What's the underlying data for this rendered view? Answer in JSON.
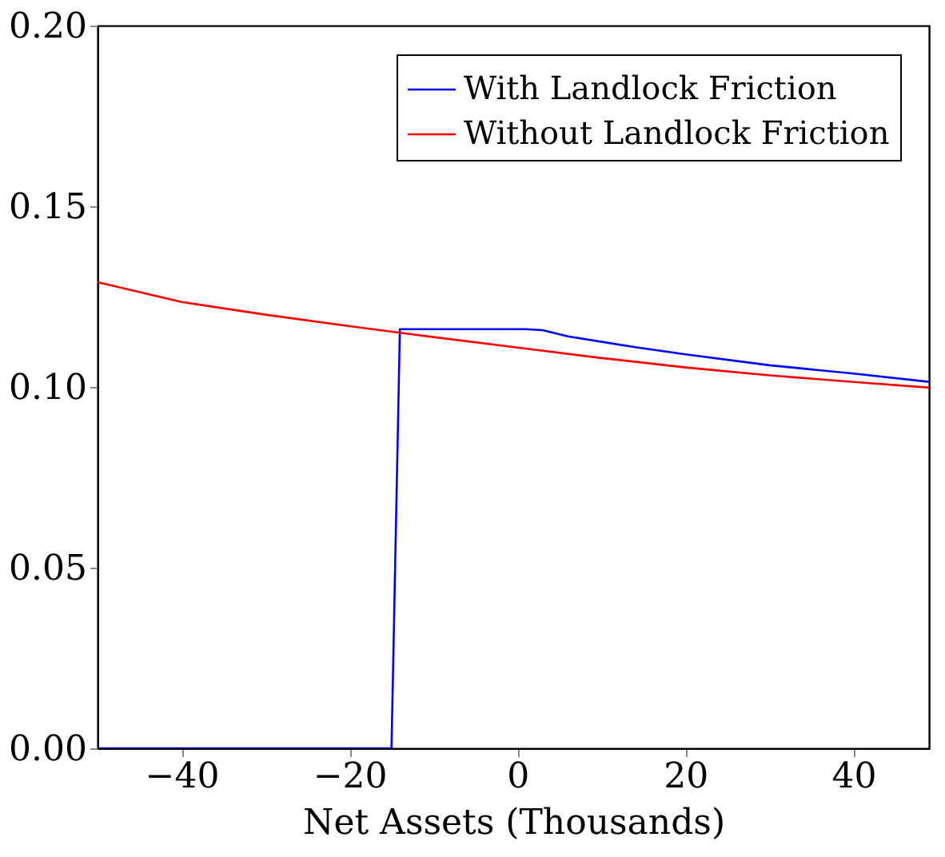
{
  "chart_data": {
    "type": "line",
    "xlabel": "Net Assets (Thousands)",
    "xlim": [
      -50,
      49
    ],
    "ylim": [
      0,
      0.2
    ],
    "xticks": [
      -40,
      -20,
      0,
      20,
      40
    ],
    "yticks": [
      {
        "value": 0,
        "label": "0.00"
      },
      {
        "value": 0.05,
        "label": "0.05"
      },
      {
        "value": 0.1,
        "label": "0.10"
      },
      {
        "value": 0.15,
        "label": "0.15"
      },
      {
        "value": 0.2,
        "label": "0.20"
      }
    ],
    "grid": false,
    "legend": "top right",
    "marker": "none",
    "line_style": "solid",
    "series": [
      {
        "name": "With Landlock Friction",
        "color": "#0000ff",
        "x": [
          -50,
          -15,
          -14,
          1,
          3,
          6,
          14,
          20,
          30,
          40,
          49
        ],
        "values": [
          0,
          0,
          0.116,
          0.116,
          0.1157,
          0.114,
          0.111,
          0.109,
          0.106,
          0.1037,
          0.1014
        ]
      },
      {
        "name": "Without Landlock Friction",
        "color": "#ff0000",
        "x": [
          -50,
          -40,
          -30,
          -20,
          -10,
          0,
          10,
          20,
          30,
          40,
          49
        ],
        "values": [
          0.129,
          0.1235,
          0.12,
          0.1168,
          0.1138,
          0.1109,
          0.108,
          0.1054,
          0.1032,
          0.1014,
          0.0998
        ]
      }
    ]
  }
}
